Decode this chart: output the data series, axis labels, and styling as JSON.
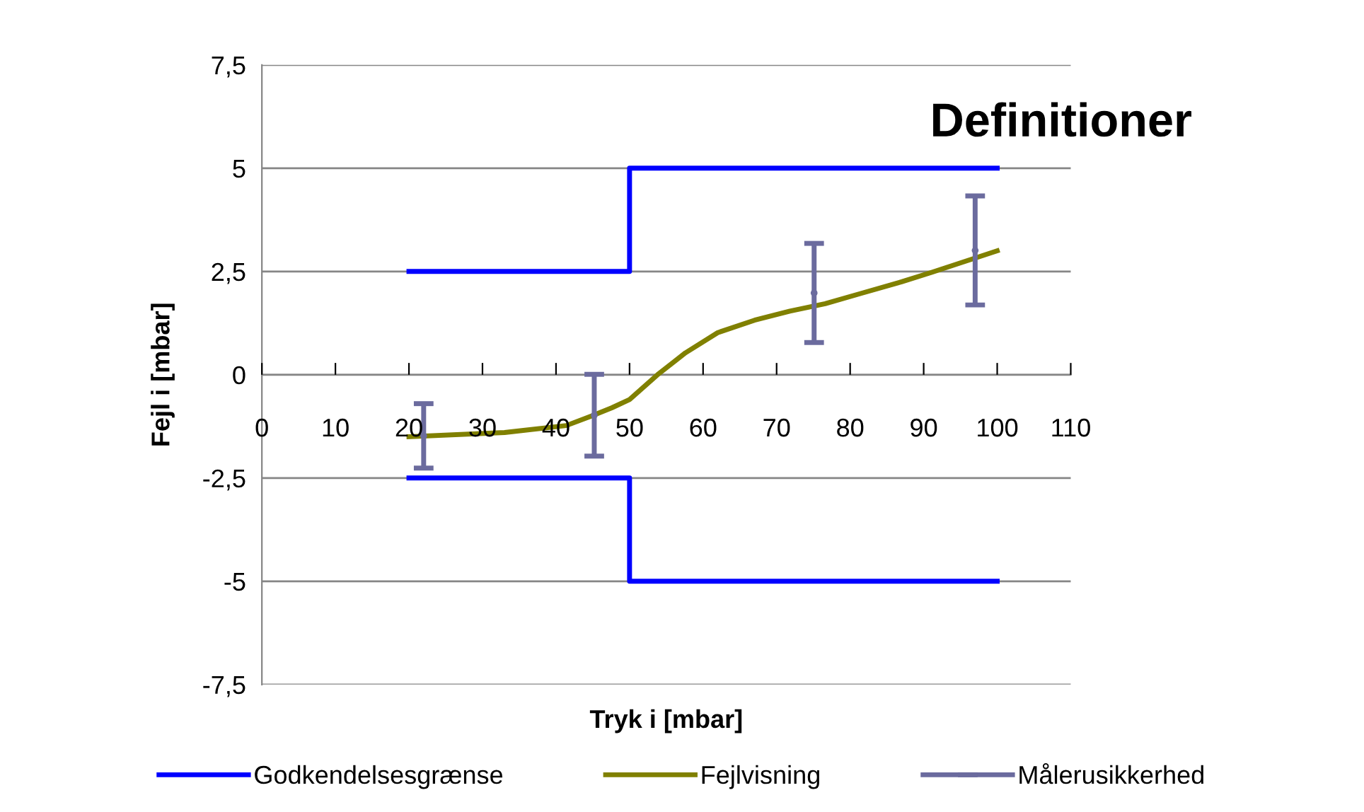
{
  "chart_data": {
    "type": "line",
    "title": "Definitioner",
    "xlabel": "Tryk i [mbar]",
    "ylabel": "Fejl i [mbar]",
    "xlim": [
      0,
      110
    ],
    "xticks": [
      0,
      10,
      20,
      30,
      40,
      50,
      60,
      70,
      80,
      90,
      100,
      110
    ],
    "ylim": [
      -7.5,
      7.5
    ],
    "yticks": [
      {
        "value": -7.5,
        "label": "-7,5"
      },
      {
        "value": -5,
        "label": "-5"
      },
      {
        "value": -2.5,
        "label": "-2,5"
      },
      0,
      {
        "value": 2.5,
        "label": "2,5"
      },
      5,
      {
        "value": 7.5,
        "label": "7,5"
      }
    ],
    "grid": "y",
    "legend": "bottom",
    "series": [
      {
        "name": "Godkendelsesgrænse",
        "color": "#0000ff",
        "x": [
          20,
          50,
          50,
          100
        ],
        "values": [
          2.5,
          2.5,
          5,
          5
        ]
      },
      {
        "color": "#0000ff",
        "x": [
          20,
          50,
          50,
          100
        ],
        "values": [
          -2.5,
          -2.5,
          -5,
          -5
        ]
      },
      {
        "name": "Fejlvisning",
        "color": "#808000",
        "x": [
          20,
          33,
          41.4,
          44.8,
          47.6,
          50,
          53.8,
          57.6,
          62,
          67,
          71.8,
          76.6,
          81.5,
          87,
          91.1,
          100
        ],
        "values": [
          -1.5,
          -1.4,
          -1.23,
          -1.0,
          -0.8,
          -0.6,
          0,
          0.53,
          1.02,
          1.32,
          1.54,
          1.72,
          1.97,
          2.25,
          2.48,
          3.0
        ]
      },
      {
        "name": "Målerusikkerhed",
        "type": "scatter",
        "color": "#6b6b9e",
        "x": [
          22,
          45.2,
          75.1,
          97
        ],
        "values": [
          -1.48,
          -0.98,
          1.98,
          3.01
        ],
        "errors": [
          0.78,
          0.99,
          1.2,
          1.32
        ]
      }
    ]
  }
}
